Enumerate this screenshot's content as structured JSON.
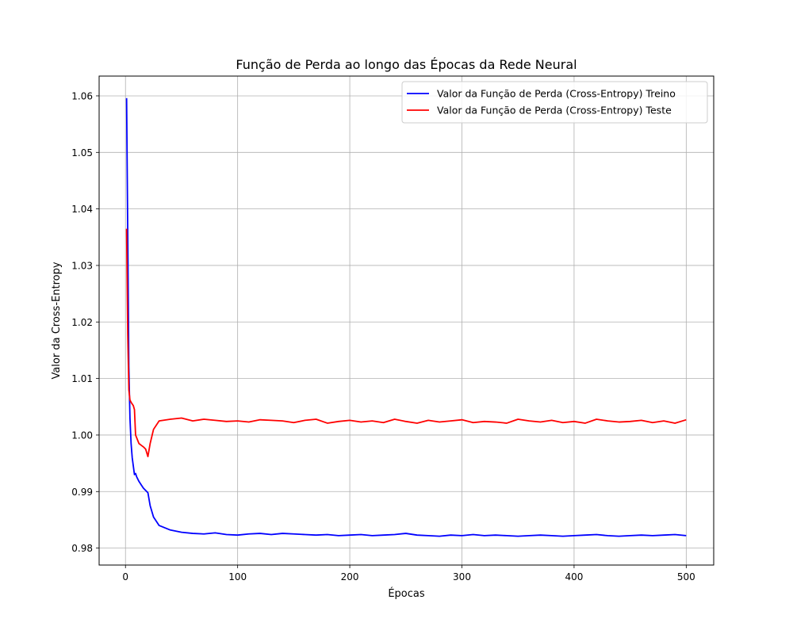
{
  "chart_data": {
    "type": "line",
    "title": "Função de Perda ao longo das Épocas da Rede Neural",
    "xlabel": "Épocas",
    "ylabel": "Valor da Cross-Entropy",
    "xlim": [
      -23.5,
      524.5
    ],
    "ylim": [
      0.977,
      1.0635
    ],
    "xticks": [
      0,
      100,
      200,
      300,
      400,
      500
    ],
    "xtick_labels": [
      "0",
      "100",
      "200",
      "300",
      "400",
      "500"
    ],
    "yticks": [
      0.98,
      0.99,
      1.0,
      1.01,
      1.02,
      1.03,
      1.04,
      1.05,
      1.06
    ],
    "ytick_labels": [
      "0.98",
      "0.99",
      "1.00",
      "1.01",
      "1.02",
      "1.03",
      "1.04",
      "1.05",
      "1.06"
    ],
    "grid": true,
    "legend_position": "top-right",
    "x": [
      1,
      2,
      3,
      4,
      5,
      6,
      7,
      8,
      9,
      10,
      12,
      14,
      16,
      18,
      20,
      22,
      25,
      30,
      40,
      50,
      60,
      70,
      80,
      90,
      100,
      110,
      120,
      130,
      140,
      150,
      160,
      170,
      180,
      190,
      200,
      210,
      220,
      230,
      240,
      250,
      260,
      270,
      280,
      290,
      300,
      310,
      320,
      330,
      340,
      350,
      360,
      370,
      380,
      390,
      400,
      410,
      420,
      430,
      440,
      450,
      460,
      470,
      480,
      490,
      500
    ],
    "series": [
      {
        "name": "Valor da Função de Perda (Cross-Entropy) Treino",
        "color": "#0000ff",
        "values": [
          1.0596,
          1.036,
          1.012,
          1.003,
          0.9985,
          0.996,
          0.9945,
          0.993,
          0.9932,
          0.9926,
          0.9918,
          0.9912,
          0.9906,
          0.9902,
          0.9898,
          0.9875,
          0.9855,
          0.984,
          0.9832,
          0.9828,
          0.9826,
          0.9825,
          0.9827,
          0.9824,
          0.9823,
          0.9825,
          0.9826,
          0.9824,
          0.9826,
          0.9825,
          0.9824,
          0.9823,
          0.9824,
          0.9822,
          0.9823,
          0.9824,
          0.9822,
          0.9823,
          0.9824,
          0.9826,
          0.9823,
          0.9822,
          0.9821,
          0.9823,
          0.9822,
          0.9824,
          0.9822,
          0.9823,
          0.9822,
          0.9821,
          0.9822,
          0.9823,
          0.9822,
          0.9821,
          0.9822,
          0.9823,
          0.9824,
          0.9822,
          0.9821,
          0.9822,
          0.9823,
          0.9822,
          0.9823,
          0.9824,
          0.9822
        ]
      },
      {
        "name": "Valor da Função de Perda (Cross-Entropy) Teste",
        "color": "#ff0000",
        "values": [
          1.0365,
          1.018,
          1.008,
          1.0062,
          1.0058,
          1.0055,
          1.0052,
          1.0045,
          1.0,
          0.9995,
          0.9985,
          0.9982,
          0.9979,
          0.9975,
          0.9962,
          0.9985,
          1.001,
          1.0025,
          1.0028,
          1.003,
          1.0025,
          1.0028,
          1.0026,
          1.0024,
          1.0025,
          1.0023,
          1.0027,
          1.0026,
          1.0025,
          1.0022,
          1.0026,
          1.0028,
          1.0021,
          1.0024,
          1.0026,
          1.0023,
          1.0025,
          1.0022,
          1.0028,
          1.0024,
          1.0021,
          1.0026,
          1.0023,
          1.0025,
          1.0027,
          1.0022,
          1.0024,
          1.0023,
          1.0021,
          1.0028,
          1.0025,
          1.0023,
          1.0026,
          1.0022,
          1.0024,
          1.0021,
          1.0028,
          1.0025,
          1.0023,
          1.0024,
          1.0026,
          1.0022,
          1.0025,
          1.0021,
          1.0027
        ]
      }
    ]
  }
}
